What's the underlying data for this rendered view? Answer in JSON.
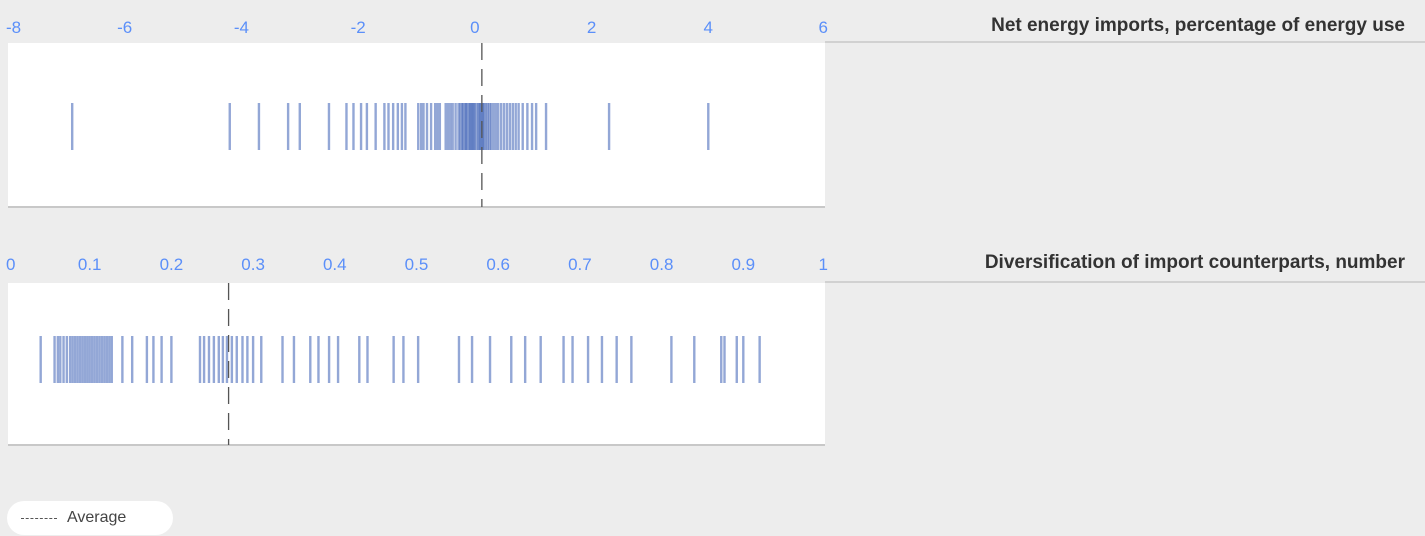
{
  "chart_data": [
    {
      "type": "strip",
      "title": "Net energy imports, percentage of energy use",
      "xlim": [
        -8,
        6
      ],
      "ticks": [
        -8,
        -6,
        -4,
        -2,
        0,
        2,
        4,
        6
      ],
      "tick_labels": [
        "-8",
        "-6",
        "-4",
        "-2",
        "0",
        "2",
        "4",
        "6"
      ],
      "average": 0.12,
      "values": [
        -6.9,
        -4.2,
        -3.7,
        -3.2,
        -3.0,
        -2.5,
        -2.2,
        -2.08,
        -1.95,
        -1.85,
        -1.7,
        -1.55,
        -1.48,
        -1.4,
        -1.32,
        -1.25,
        -1.19,
        -0.97,
        -0.92,
        -0.88,
        -0.82,
        -0.75,
        -0.68,
        -0.64,
        -0.6,
        -0.5,
        -0.46,
        -0.42,
        -0.38,
        -0.33,
        -0.28,
        -0.25,
        -0.22,
        -0.2,
        -0.17,
        -0.15,
        -0.13,
        -0.1,
        -0.08,
        -0.06,
        -0.04,
        -0.02,
        0.0,
        0.03,
        0.06,
        0.08,
        0.1,
        0.12,
        0.14,
        0.16,
        0.19,
        0.22,
        0.25,
        0.28,
        0.32,
        0.36,
        0.4,
        0.45,
        0.5,
        0.55,
        0.6,
        0.65,
        0.7,
        0.75,
        0.82,
        0.9,
        0.98,
        1.05,
        1.22,
        2.3,
        4.0
      ]
    },
    {
      "type": "strip",
      "title": "Diversification of import counterparts, number",
      "xlim": [
        0,
        1
      ],
      "ticks": [
        0,
        0.1,
        0.2,
        0.3,
        0.4,
        0.5,
        0.6,
        0.7,
        0.8,
        0.9,
        1
      ],
      "tick_labels": [
        "0",
        "0.1",
        "0.2",
        "0.3",
        "0.4",
        "0.5",
        "0.6",
        "0.7",
        "0.8",
        "0.9",
        "1"
      ],
      "average": 0.27,
      "values": [
        0.04,
        0.057,
        0.061,
        0.064,
        0.068,
        0.072,
        0.076,
        0.079,
        0.082,
        0.085,
        0.088,
        0.091,
        0.094,
        0.097,
        0.1,
        0.103,
        0.106,
        0.109,
        0.112,
        0.115,
        0.118,
        0.121,
        0.124,
        0.127,
        0.14,
        0.152,
        0.17,
        0.178,
        0.188,
        0.2,
        0.235,
        0.24,
        0.246,
        0.252,
        0.258,
        0.263,
        0.268,
        0.274,
        0.28,
        0.287,
        0.293,
        0.3,
        0.31,
        0.336,
        0.35,
        0.37,
        0.38,
        0.393,
        0.404,
        0.43,
        0.44,
        0.472,
        0.484,
        0.502,
        0.552,
        0.568,
        0.59,
        0.616,
        0.633,
        0.652,
        0.68,
        0.691,
        0.71,
        0.727,
        0.745,
        0.763,
        0.812,
        0.84,
        0.873,
        0.877,
        0.892,
        0.9,
        0.92
      ]
    }
  ],
  "legend": {
    "label": "Average"
  },
  "colors": {
    "bar": "#3a5fb4",
    "tick_label": "#5b8ff9",
    "average_line": "#555555",
    "plot_bg": "#ffffff",
    "page_bg": "#ededed"
  }
}
